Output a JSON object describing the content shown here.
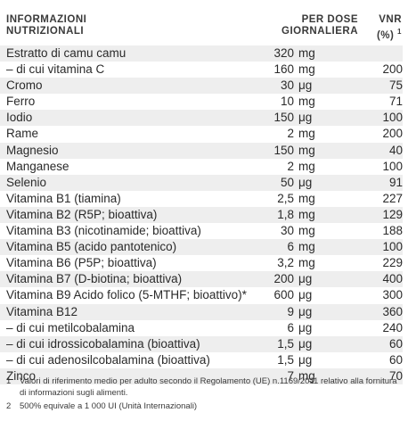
{
  "header": {
    "col_name": "INFORMAZIONI NUTRIZIONALI",
    "col_name_line1": "INFORMAZIONI",
    "col_name_line2": "NUTRIZIONALI",
    "col_dose_line1": "PER DOSE",
    "col_dose_line2": "GIORNALIERA",
    "col_vnr_line1": "VNR",
    "col_vnr_line2": "(%)",
    "col_vnr_sup": "1"
  },
  "rows": [
    {
      "name": "Estratto di camu camu",
      "amount": "320",
      "unit": "mg",
      "vnr": ""
    },
    {
      "name": "– di cui vitamina C",
      "amount": "160",
      "unit": "mg",
      "vnr": "200"
    },
    {
      "name": "Cromo",
      "amount": "30",
      "unit": "μg",
      "vnr": "75"
    },
    {
      "name": "Ferro",
      "amount": "10",
      "unit": "mg",
      "vnr": "71"
    },
    {
      "name": "Iodio",
      "amount": "150",
      "unit": "μg",
      "vnr": "100"
    },
    {
      "name": "Rame",
      "amount": "2",
      "unit": "mg",
      "vnr": "200"
    },
    {
      "name": "Magnesio",
      "amount": "150",
      "unit": "mg",
      "vnr": "40"
    },
    {
      "name": "Manganese",
      "amount": "2",
      "unit": "mg",
      "vnr": "100"
    },
    {
      "name": "Selenio",
      "amount": "50",
      "unit": "μg",
      "vnr": "91"
    },
    {
      "name": "Vitamina B1 (tiamina)",
      "amount": "2,5",
      "unit": "mg",
      "vnr": "227"
    },
    {
      "name": "Vitamina B2 (R5P; bioattiva)",
      "amount": "1,8",
      "unit": "mg",
      "vnr": "129"
    },
    {
      "name": "Vitamina B3 (nicotinamide; bioattiva)",
      "amount": "30",
      "unit": "mg",
      "vnr": "188"
    },
    {
      "name": "Vitamina B5 (acido pantotenico)",
      "amount": "6",
      "unit": "mg",
      "vnr": "100"
    },
    {
      "name": "Vitamina B6 (P5P; bioattiva)",
      "amount": "3,2",
      "unit": "mg",
      "vnr": "229"
    },
    {
      "name": "Vitamina B7 (D-biotina; bioattiva)",
      "amount": "200",
      "unit": "μg",
      "vnr": "400"
    },
    {
      "name": "Vitamina B9 Acido folico (5-MTHF; bioattivo)*",
      "amount": "600",
      "unit": "μg",
      "vnr": "300"
    },
    {
      "name": "Vitamina B12",
      "amount": "9",
      "unit": "μg",
      "vnr": "360"
    },
    {
      "name": "– di cui metilcobalamina",
      "amount": "6",
      "unit": "μg",
      "vnr": "240"
    },
    {
      "name": "– di cui idrossicobalamina (bioattiva)",
      "amount": "1,5",
      "unit": "μg",
      "vnr": "60"
    },
    {
      "name": "– di cui adenosilcobalamina (bioattiva)",
      "amount": "1,5",
      "unit": "μg",
      "vnr": "60"
    },
    {
      "name": "Zinco",
      "amount": "7",
      "unit": "mg",
      "vnr": "70"
    }
  ],
  "footnotes": [
    {
      "num": "1",
      "text": "Valori di riferimento medio per adulto secondo il Regolamento (UE) n.1169/2011 relativo alla fornitura di informazioni sugli alimenti."
    },
    {
      "num": "2",
      "text": "500% equivale a 1 000 UI (Unità Internazionali)"
    }
  ]
}
